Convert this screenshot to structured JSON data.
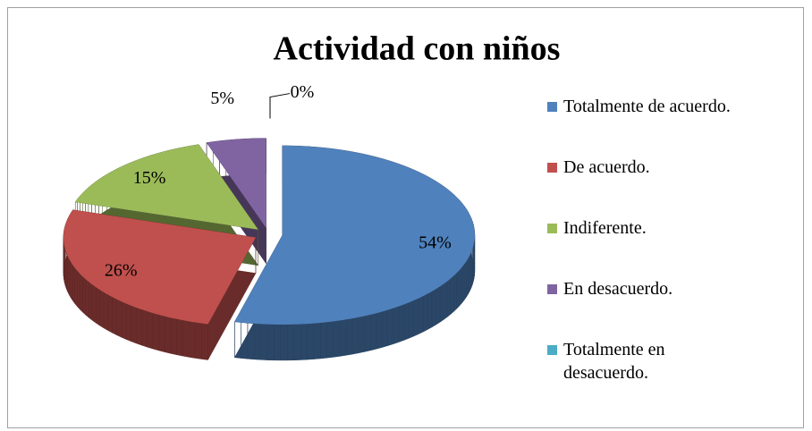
{
  "chart_data": {
    "type": "pie",
    "title": "Actividad con niños",
    "categories": [
      "Totalmente de acuerdo.",
      "De acuerdo.",
      "Indiferente.",
      "En desacuerdo.",
      "Totalmente en desacuerdo."
    ],
    "values": [
      54,
      26,
      15,
      5,
      0
    ],
    "value_labels": [
      "54%",
      "26%",
      "15%",
      "5%",
      "0%"
    ],
    "colors": [
      "#4f81bd",
      "#c0504d",
      "#9bbb59",
      "#8064a2",
      "#4bacc6"
    ],
    "legend": "right"
  }
}
